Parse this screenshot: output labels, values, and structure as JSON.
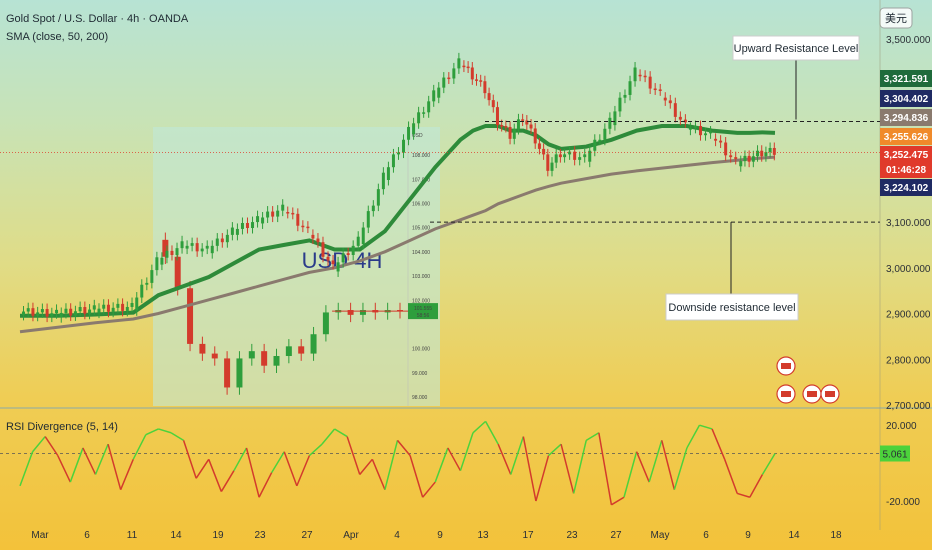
{
  "header": {
    "symbol": "Gold Spot / U.S. Dollar · 4h · OANDA",
    "indicator": "SMA (close, 50, 200)",
    "currency_button": "美元"
  },
  "colors": {
    "sma_fast": "#2e8b3a",
    "sma_slow": "#8a7a6e",
    "price_candles_up": "#2e9e3c",
    "price_candles_down": "#d33b2c"
  },
  "chart_data": [
    {
      "type": "line",
      "y_ticks": [
        "3,500.000",
        "3,100.000",
        "3,000.000",
        "2,900.000",
        "2,800.000",
        "2,700.000"
      ],
      "y_tick_values": [
        3500,
        3100,
        3000,
        2900,
        2800,
        2700
      ],
      "ylim": [
        2700,
        3520
      ],
      "x_ticks": [
        "Mar",
        "6",
        "11",
        "14",
        "19",
        "23",
        "27",
        "Apr",
        "4",
        "9",
        "13",
        "17",
        "23",
        "27",
        "May",
        "6",
        "9",
        "14",
        "18"
      ],
      "x": [
        0,
        3,
        6,
        9,
        11,
        13,
        15,
        17,
        19,
        21,
        23,
        25,
        27,
        29,
        31,
        33,
        35,
        36,
        37,
        38,
        39,
        40,
        41,
        42,
        43,
        45,
        47,
        49,
        51,
        53,
        55,
        57,
        58,
        59,
        60
      ],
      "series": [
        {
          "name": "price",
          "values": [
            2905,
            2900,
            2910,
            2915,
            3015,
            3050,
            3040,
            3080,
            3105,
            3130,
            3080,
            3000,
            3060,
            3200,
            3300,
            3380,
            3450,
            3420,
            3390,
            3320,
            3290,
            3330,
            3280,
            3220,
            3250,
            3240,
            3320,
            3430,
            3380,
            3310,
            3290,
            3230,
            3240,
            3252,
            3255
          ]
        },
        {
          "name": "sma50",
          "values": [
            2895,
            2895,
            2898,
            2902,
            2940,
            2960,
            2980,
            3010,
            3040,
            3050,
            3060,
            3040,
            3040,
            3080,
            3150,
            3220,
            3280,
            3300,
            3310,
            3310,
            3300,
            3300,
            3290,
            3270,
            3260,
            3265,
            3280,
            3300,
            3310,
            3310,
            3300,
            3295,
            3295,
            3296,
            3295
          ]
        },
        {
          "name": "sma200",
          "values": [
            2860,
            2870,
            2880,
            2888,
            2900,
            2915,
            2930,
            2945,
            2960,
            2975,
            2990,
            3000,
            3015,
            3035,
            3060,
            3085,
            3105,
            3115,
            3125,
            3140,
            3150,
            3160,
            3170,
            3178,
            3185,
            3195,
            3205,
            3212,
            3218,
            3224,
            3230,
            3235,
            3238,
            3240,
            3242
          ]
        }
      ],
      "price_labels": [
        {
          "text": "3,321.591",
          "value": 3321.591,
          "color": "#1f6b3b"
        },
        {
          "text": "3,304.402",
          "value": 3304.402,
          "color": "#1f2a63"
        },
        {
          "text": "3,294.836",
          "value": 3294.836,
          "color": "#8a7a6e"
        },
        {
          "text": "3,255.626",
          "value": 3255.626,
          "color": "#f08a2a"
        },
        {
          "text": "3,252.475",
          "value": 3252.475,
          "color": "#e03a2b"
        },
        {
          "text": "01:46:28",
          "value": 3236,
          "color": "#e03a2b"
        },
        {
          "text": "3,224.102",
          "value": 3224.102,
          "color": "#1f2a63"
        }
      ],
      "annotations": {
        "upward_label": "Upward Resistance Level",
        "upward_value": 3320,
        "downside_label": "Downside resistance level",
        "downside_value": 3100
      }
    },
    {
      "type": "line",
      "inset_title": "USD 4H",
      "inset_currency": "USD",
      "inset_ticks": [
        "108.000",
        "107.000",
        "106.000",
        "105.000",
        "104.000",
        "103.000",
        "102.000",
        "101.555",
        "100.000",
        "99.000",
        "98.000"
      ],
      "inset_tick_values": [
        108,
        107,
        106,
        105,
        104,
        103,
        102,
        101.555,
        100,
        99,
        98
      ],
      "inset_marker": "101.555",
      "inset_marker_sub": "58:56",
      "x": [
        0,
        2,
        4,
        6,
        8,
        10,
        12,
        14,
        16,
        18,
        20,
        22,
        24,
        26,
        28,
        30,
        32,
        34,
        36,
        38,
        40
      ],
      "values": [
        104.5,
        103.8,
        102.5,
        100.2,
        99.8,
        99.6,
        98.4,
        99.6,
        99.9,
        99.3,
        99.7,
        100.1,
        99.8,
        100.6,
        101.5,
        101.6,
        101.4,
        101.6,
        101.5,
        101.6,
        101.55
      ],
      "ylim": [
        97.8,
        108.5
      ]
    },
    {
      "type": "line",
      "indicator": "RSI Divergence (5, 14)",
      "y_ticks": [
        "20.000",
        "-20.000"
      ],
      "y_tick_values": [
        20,
        -20
      ],
      "current": "5.061",
      "current_value": 5.061,
      "ylim": [
        -30,
        28
      ],
      "x": [
        0,
        1,
        2,
        3,
        4,
        5,
        6,
        7,
        8,
        9,
        10,
        11,
        12,
        13,
        14,
        15,
        16,
        17,
        18,
        19,
        20,
        21,
        22,
        23,
        24,
        25,
        26,
        27,
        28,
        29,
        30,
        31,
        32,
        33,
        34,
        35,
        36,
        37,
        38,
        39,
        40,
        41,
        42,
        43,
        44,
        45,
        46,
        47,
        48,
        49,
        50,
        51,
        52,
        53,
        54,
        55,
        56,
        57,
        58,
        59,
        60
      ],
      "values": [
        -12,
        6,
        14,
        4,
        -10,
        8,
        -6,
        10,
        -14,
        2,
        15,
        18,
        16,
        12,
        -8,
        2,
        -15,
        -4,
        8,
        -18,
        -5,
        6,
        -12,
        4,
        10,
        18,
        14,
        -6,
        2,
        -14,
        12,
        4,
        -18,
        -10,
        8,
        -4,
        16,
        22,
        10,
        -6,
        14,
        -20,
        4,
        10,
        -16,
        12,
        16,
        -22,
        -18,
        6,
        -10,
        12,
        -14,
        8,
        20,
        18,
        2,
        -16,
        -18,
        -6,
        5
      ]
    }
  ]
}
